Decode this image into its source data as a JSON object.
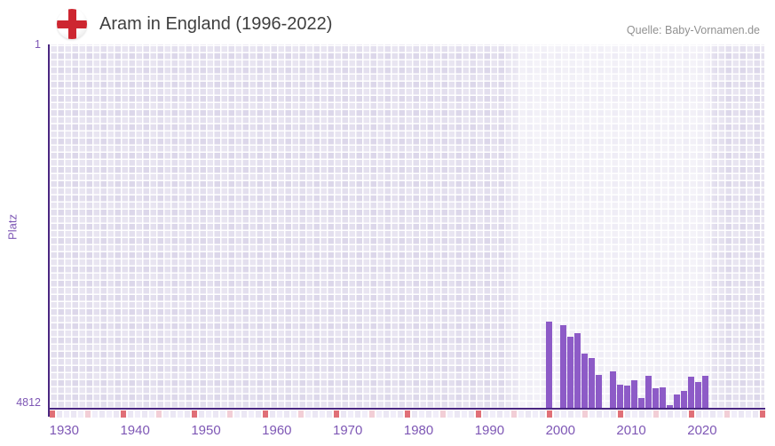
{
  "header": {
    "title": "Aram in England (1996-2022)",
    "source": "Quelle: Baby-Vornamen.de",
    "flag_icon": "england-flag-icon"
  },
  "chart_data": {
    "type": "bar",
    "title": "Aram in England (1996-2022)",
    "xlabel": "",
    "ylabel": "Platz",
    "legend_visible": false,
    "grid": "checkerboard",
    "y_axis": {
      "top_label": "1",
      "bottom_label": "4812",
      "min": 1,
      "max": 4812,
      "inverted": true,
      "note": "rank, 1 = best at top"
    },
    "x_ticks": [
      "1930",
      "1940",
      "1950",
      "1960",
      "1970",
      "1980",
      "1990",
      "2000",
      "2010",
      "2020"
    ],
    "categories": [
      1996,
      1997,
      1998,
      1999,
      2000,
      2001,
      2002,
      2003,
      2004,
      2005,
      2006,
      2007,
      2008,
      2009,
      2010,
      2011,
      2012,
      2013,
      2014,
      2015,
      2016,
      2017,
      2018,
      2019,
      2020,
      2021,
      2022
    ],
    "values": [
      null,
      null,
      3662,
      null,
      3709,
      3861,
      3814,
      4084,
      4143,
      4366,
      null,
      4319,
      4495,
      4507,
      4436,
      4671,
      4378,
      4542,
      4530,
      4765,
      4624,
      4577,
      4390,
      4460,
      4378,
      null,
      null
    ],
    "bar_color": "#8d5bc7",
    "highlight_band_years": [
      1994,
      2021
    ]
  },
  "colors": {
    "axis": "#4a2781",
    "tick_label": "#7e57b5",
    "title_text": "#3f3f3f",
    "source_text": "#919191",
    "plot_cell": "#dcd7ea",
    "strip_cell_even": "#f1eef9",
    "strip_cell_odd": "#ebe7f4",
    "strip_decade_marker": "#e06f77",
    "strip_half_decade_marker": "#f2ced6",
    "flag_cross": "#cd2630"
  }
}
